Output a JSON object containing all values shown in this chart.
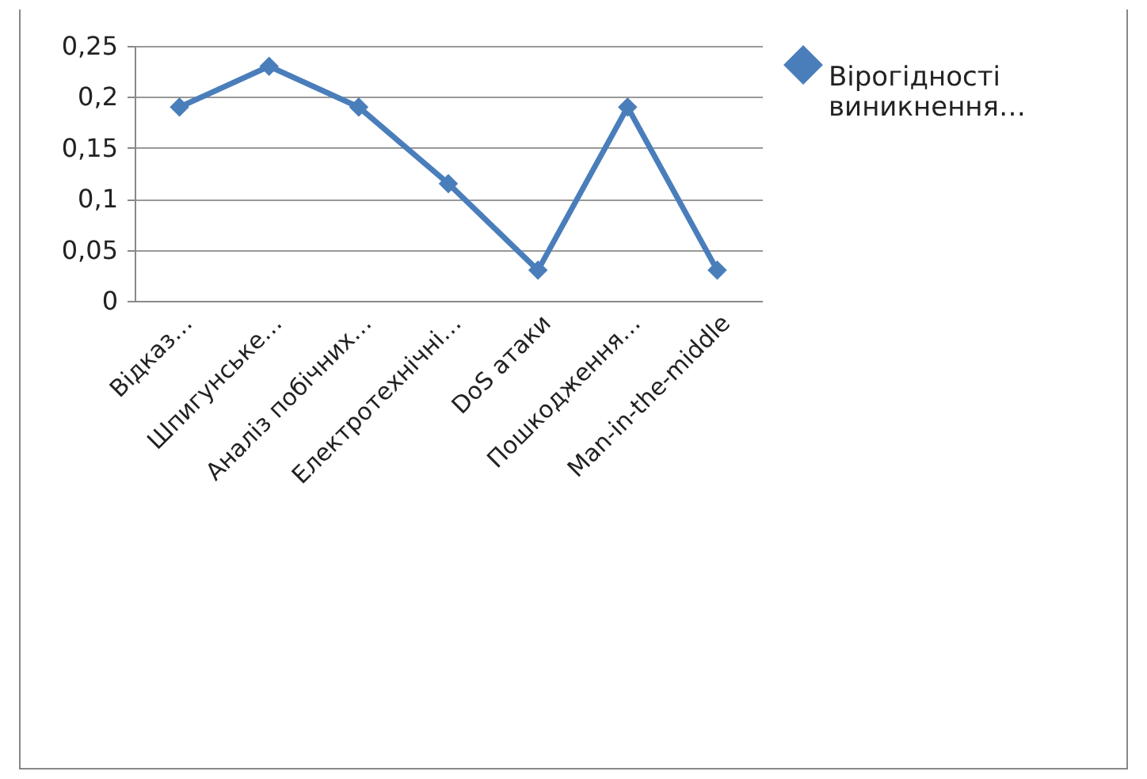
{
  "chart_data": {
    "type": "line",
    "categories": [
      "Відказ…",
      "Шпигунське…",
      "Аналіз  побічних…",
      "Електротехнічні…",
      "DoS атаки",
      "Пошкодження…",
      "Man-in-the-middle"
    ],
    "series": [
      {
        "name": "Вірогідності виникнення…",
        "color": "#4a7ebb",
        "values": [
          0.19,
          0.23,
          0.19,
          0.115,
          0.03,
          0.19,
          0.03
        ]
      }
    ],
    "ylim": [
      0,
      0.25
    ],
    "yticks": [
      {
        "value": 0,
        "label": "0"
      },
      {
        "value": 0.05,
        "label": "0,05"
      },
      {
        "value": 0.1,
        "label": "0,1"
      },
      {
        "value": 0.15,
        "label": "0,15"
      },
      {
        "value": 0.2,
        "label": "0,2"
      },
      {
        "value": 0.25,
        "label": "0,25"
      }
    ],
    "grid": "y",
    "legend": "right",
    "marker": "diamond",
    "line_style": "solid"
  }
}
